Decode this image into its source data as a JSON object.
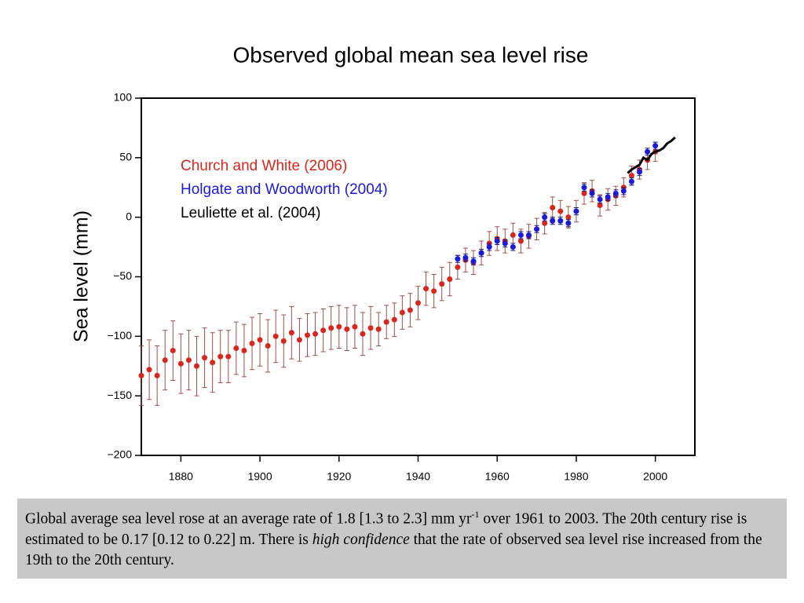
{
  "chart_data": {
    "type": "scatter",
    "title": "Observed global mean sea level rise",
    "y_label": "Sea level (mm)",
    "xlim": [
      1870,
      2010
    ],
    "ylim": [
      -200,
      100
    ],
    "xticks": [
      1880,
      1900,
      1920,
      1940,
      1960,
      1980,
      2000
    ],
    "yticks": [
      {
        "value": -200,
        "label": "−200"
      },
      {
        "value": -150,
        "label": "−150"
      },
      {
        "value": -100,
        "label": "−100"
      },
      {
        "value": -50,
        "label": "−50"
      },
      0,
      50,
      100
    ],
    "series": [
      {
        "name": "Church and White (2006)",
        "color": "#d9261c",
        "error_color": "#a0504a",
        "style": "points",
        "x": [
          1870,
          1872,
          1874,
          1876,
          1878,
          1880,
          1882,
          1884,
          1886,
          1888,
          1890,
          1892,
          1894,
          1896,
          1898,
          1900,
          1902,
          1904,
          1906,
          1908,
          1910,
          1912,
          1914,
          1916,
          1918,
          1920,
          1922,
          1924,
          1926,
          1928,
          1930,
          1932,
          1934,
          1936,
          1938,
          1940,
          1942,
          1944,
          1946,
          1948,
          1950,
          1952,
          1954,
          1956,
          1958,
          1960,
          1962,
          1964,
          1966,
          1968,
          1970,
          1972,
          1974,
          1976,
          1978,
          1980,
          1982,
          1984,
          1986,
          1988,
          1990,
          1992,
          1994,
          1996,
          1998,
          2000
        ],
        "values": [
          -133,
          -128,
          -133,
          -120,
          -112,
          -123,
          -120,
          -125,
          -118,
          -122,
          -117,
          -117,
          -110,
          -112,
          -106,
          -103,
          -108,
          -100,
          -104,
          -97,
          -103,
          -99,
          -98,
          -95,
          -93,
          -92,
          -94,
          -92,
          -98,
          -93,
          -94,
          -88,
          -86,
          -80,
          -78,
          -72,
          -60,
          -62,
          -56,
          -52,
          -42,
          -36,
          -38,
          -30,
          -22,
          -18,
          -20,
          -15,
          -20,
          -16,
          -10,
          -5,
          8,
          5,
          0,
          5,
          20,
          22,
          10,
          15,
          18,
          25,
          35,
          40,
          48,
          55
        ],
        "errors": [
          25,
          25,
          25,
          25,
          25,
          25,
          25,
          25,
          25,
          25,
          22,
          22,
          22,
          22,
          22,
          22,
          22,
          22,
          22,
          22,
          18,
          18,
          18,
          18,
          18,
          18,
          18,
          18,
          18,
          18,
          14,
          14,
          14,
          14,
          14,
          14,
          14,
          14,
          14,
          14,
          10,
          10,
          10,
          10,
          10,
          10,
          10,
          10,
          10,
          10,
          9,
          9,
          9,
          9,
          9,
          9,
          9,
          9,
          9,
          9,
          8,
          8,
          8,
          8,
          8,
          8
        ]
      },
      {
        "name": "Holgate and Woodworth (2004)",
        "color": "#1a1adb",
        "error_color": "#1a1a8a",
        "style": "points",
        "x": [
          1950,
          1952,
          1954,
          1956,
          1958,
          1960,
          1962,
          1964,
          1966,
          1968,
          1970,
          1972,
          1974,
          1976,
          1978,
          1980,
          1982,
          1984,
          1986,
          1988,
          1990,
          1992,
          1994,
          1996,
          1998,
          2000
        ],
        "values": [
          -35,
          -34,
          -37,
          -30,
          -25,
          -20,
          -22,
          -25,
          -15,
          -15,
          -10,
          0,
          -3,
          -3,
          -5,
          5,
          25,
          20,
          15,
          17,
          20,
          22,
          30,
          38,
          55,
          60
        ],
        "errors": [
          3,
          3,
          3,
          3,
          3,
          3,
          3,
          3,
          3,
          3,
          3,
          3,
          3,
          3,
          3,
          3,
          3,
          3,
          3,
          3,
          3,
          3,
          3,
          3,
          3,
          3
        ]
      },
      {
        "name": "Leuliette et al. (2004)",
        "color": "#000000",
        "style": "line",
        "x": [
          1993,
          1994,
          1995,
          1996,
          1997,
          1998,
          1999,
          2000,
          2001,
          2002,
          2003,
          2004,
          2005
        ],
        "values": [
          37,
          40,
          42,
          44,
          50,
          48,
          53,
          55,
          56,
          58,
          62,
          64,
          67
        ]
      }
    ]
  },
  "caption": {
    "parts": [
      "Global average sea level rose at an average rate of 1.8 [1.3 to 2.3] mm yr",
      "-1",
      " over 1961 to 2003. The 20th century rise is estimated to be 0.17 [0.12 to 0.22] m. There is ",
      "high confidence",
      " that the rate of observed sea level rise increased from the 19th to the 20th century."
    ]
  }
}
